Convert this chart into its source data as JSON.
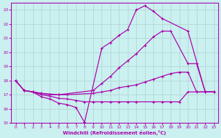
{
  "xlabel": "Windchill (Refroidissement éolien,°C)",
  "background_color": "#caf0f0",
  "line_color": "#aa00aa",
  "grid_color": "#b0d0d0",
  "xlim": [
    -0.5,
    23.5
  ],
  "ylim": [
    15,
    23.5
  ],
  "yticks": [
    15,
    16,
    17,
    18,
    19,
    20,
    21,
    22,
    23
  ],
  "xticks": [
    0,
    1,
    2,
    3,
    4,
    5,
    6,
    7,
    8,
    9,
    10,
    11,
    12,
    13,
    14,
    15,
    16,
    17,
    18,
    19,
    20,
    21,
    22,
    23
  ],
  "line_peak_x": [
    0,
    1,
    2,
    3,
    4,
    5,
    6,
    7,
    8,
    10,
    11,
    12,
    13,
    14,
    15,
    16,
    17,
    20,
    22,
    23
  ],
  "line_peak_y": [
    18.0,
    17.3,
    17.2,
    16.85,
    16.7,
    16.4,
    16.3,
    16.1,
    15.05,
    20.3,
    20.7,
    21.2,
    21.6,
    23.0,
    23.3,
    22.9,
    22.4,
    21.5,
    17.2,
    17.2
  ],
  "line_upper_x": [
    0,
    1,
    2,
    3,
    5,
    9,
    10,
    11,
    12,
    13,
    14,
    15,
    16,
    17,
    18,
    20,
    21,
    22,
    23
  ],
  "line_upper_y": [
    18.0,
    17.3,
    17.2,
    17.1,
    17.0,
    17.3,
    17.8,
    18.3,
    18.9,
    19.4,
    19.9,
    20.5,
    21.1,
    21.5,
    21.5,
    19.2,
    19.2,
    17.2,
    17.2
  ],
  "line_mid_x": [
    0,
    1,
    2,
    3,
    4,
    5,
    6,
    9,
    10,
    11,
    12,
    13,
    14,
    15,
    16,
    17,
    18,
    19,
    20,
    21,
    22,
    23
  ],
  "line_mid_y": [
    18.0,
    17.3,
    17.2,
    17.1,
    17.0,
    17.0,
    17.0,
    17.1,
    17.2,
    17.3,
    17.5,
    17.6,
    17.7,
    17.9,
    18.1,
    18.3,
    18.5,
    18.6,
    18.6,
    17.2,
    17.2,
    17.2
  ],
  "line_low_x": [
    0,
    1,
    2,
    3,
    4,
    5,
    6,
    7,
    8,
    9,
    10,
    11,
    12,
    13,
    14,
    16,
    17,
    18,
    19,
    20,
    21,
    22,
    23
  ],
  "line_low_y": [
    18.0,
    17.3,
    17.2,
    17.0,
    16.9,
    16.75,
    16.7,
    16.6,
    16.5,
    16.5,
    16.5,
    16.5,
    16.5,
    16.5,
    16.5,
    16.5,
    16.5,
    16.5,
    16.5,
    17.2,
    17.2,
    17.2,
    17.2
  ]
}
